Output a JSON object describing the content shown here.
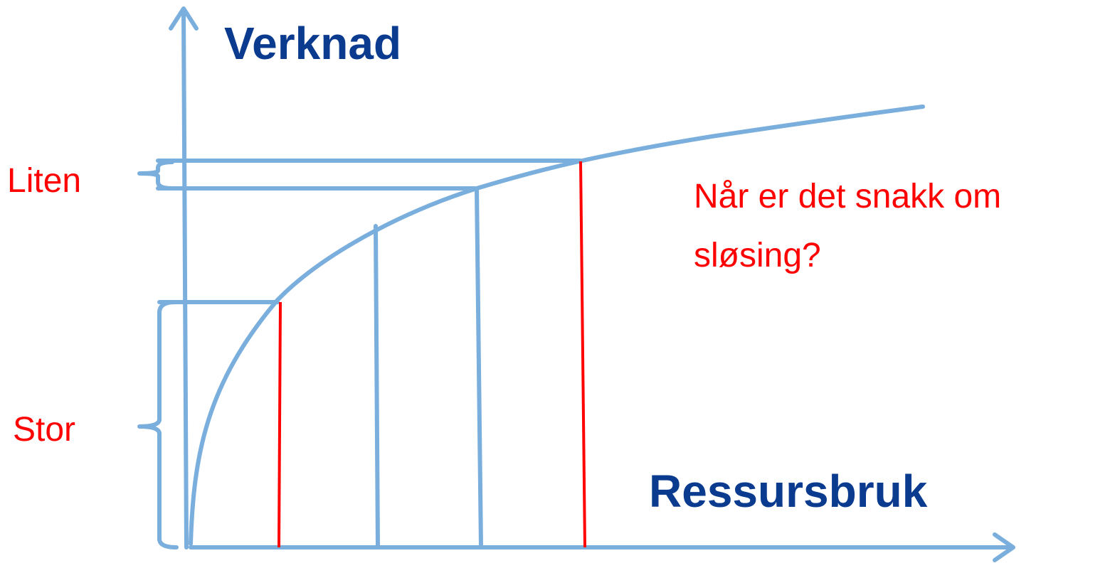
{
  "y_axis_label": "Verknad",
  "x_axis_label": "Ressursbruk",
  "brace_labels": [
    "Liten",
    "Stor"
  ],
  "question": {
    "lines": [
      "Når er det snakk om",
      "sløsing?"
    ]
  }
}
